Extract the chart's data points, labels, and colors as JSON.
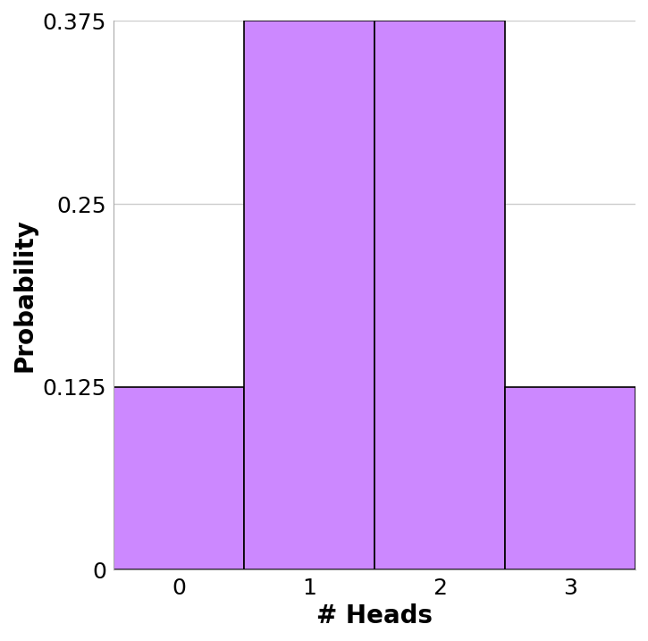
{
  "categories": [
    0,
    1,
    2,
    3
  ],
  "values": [
    0.125,
    0.375,
    0.375,
    0.125
  ],
  "bar_color": "#cc88ff",
  "bar_edgecolor": "#000000",
  "bar_linewidth": 1.2,
  "xlabel": "# Heads",
  "ylabel": "Probability",
  "xlabel_fontsize": 20,
  "ylabel_fontsize": 20,
  "xlabel_fontweight": "bold",
  "ylabel_fontweight": "bold",
  "tick_labelsize": 18,
  "yticks": [
    0,
    0.125,
    0.25,
    0.375
  ],
  "ytick_labels": [
    "0",
    "0.125",
    "0.25",
    "0.375"
  ],
  "xticks": [
    0,
    1,
    2,
    3
  ],
  "ylim": [
    0,
    0.375
  ],
  "xlim": [
    -0.5,
    3.5
  ],
  "grid_color": "#cccccc",
  "grid_linewidth": 1.0,
  "background_color": "#ffffff",
  "bar_width": 1.0,
  "figsize": [
    7.25,
    7.17
  ],
  "dpi": 100
}
